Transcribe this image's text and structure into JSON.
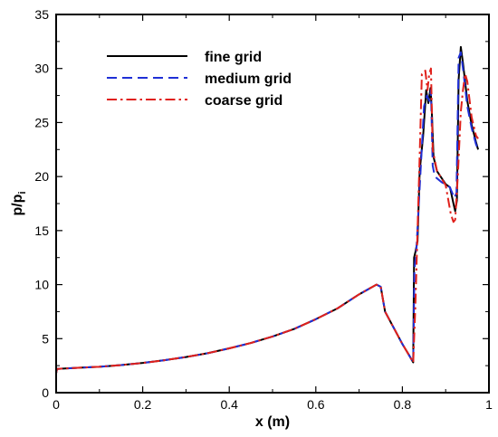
{
  "chart_data": {
    "type": "line",
    "title": "",
    "xlabel": "x (m)",
    "ylabel": "p/p",
    "ylabel_subscript": "i",
    "xlim": [
      0,
      1
    ],
    "ylim": [
      0,
      35
    ],
    "xticks": [
      "0",
      "0.2",
      "0.4",
      "0.6",
      "0.8",
      "1"
    ],
    "yticks": [
      "0",
      "5",
      "10",
      "15",
      "20",
      "25",
      "30",
      "35"
    ],
    "grid": false,
    "legend_position": "top-left",
    "series": [
      {
        "name": "fine grid",
        "color": "#000000",
        "dash": "solid",
        "x": [
          0,
          0.002,
          0.05,
          0.1,
          0.15,
          0.2,
          0.25,
          0.3,
          0.35,
          0.4,
          0.45,
          0.5,
          0.55,
          0.6,
          0.65,
          0.7,
          0.74,
          0.745,
          0.75,
          0.76,
          0.78,
          0.8,
          0.815,
          0.825,
          0.827,
          0.83,
          0.835,
          0.84,
          0.848,
          0.855,
          0.86,
          0.865,
          0.868,
          0.872,
          0.88,
          0.9,
          0.91,
          0.918,
          0.922,
          0.926,
          0.93,
          0.935,
          0.94,
          0.95,
          0.96,
          0.97,
          0.975
        ],
        "y": [
          1.8,
          2.2,
          2.3,
          2.4,
          2.55,
          2.75,
          3.0,
          3.3,
          3.65,
          4.1,
          4.6,
          5.2,
          5.9,
          6.8,
          7.8,
          9.1,
          10.0,
          9.9,
          9.8,
          7.5,
          6.0,
          4.5,
          3.5,
          2.8,
          12.5,
          13.0,
          14.0,
          20.5,
          23.8,
          28.0,
          26.8,
          28.2,
          26.0,
          21.8,
          20.5,
          19.3,
          19.0,
          17.5,
          16.8,
          17.8,
          29.0,
          32.0,
          30.5,
          27.0,
          24.8,
          23.2,
          22.5
        ]
      },
      {
        "name": "medium grid",
        "color": "#1f2fd6",
        "dash": "dashed",
        "x": [
          0,
          0.002,
          0.05,
          0.1,
          0.15,
          0.2,
          0.25,
          0.3,
          0.35,
          0.4,
          0.45,
          0.5,
          0.55,
          0.6,
          0.65,
          0.7,
          0.74,
          0.745,
          0.75,
          0.76,
          0.78,
          0.8,
          0.815,
          0.825,
          0.828,
          0.832,
          0.84,
          0.85,
          0.857,
          0.862,
          0.866,
          0.87,
          0.875,
          0.89,
          0.91,
          0.92,
          0.925,
          0.93,
          0.935,
          0.94,
          0.95,
          0.96,
          0.97,
          0.975
        ],
        "y": [
          1.8,
          2.2,
          2.3,
          2.4,
          2.55,
          2.75,
          3.0,
          3.3,
          3.65,
          4.1,
          4.6,
          5.2,
          5.9,
          6.8,
          7.8,
          9.1,
          10.0,
          9.9,
          9.8,
          7.5,
          6.0,
          4.5,
          3.5,
          2.8,
          11.5,
          13.0,
          19.0,
          26.5,
          27.5,
          27.0,
          28.0,
          21.0,
          20.0,
          19.5,
          19.0,
          18.0,
          18.5,
          31.0,
          31.5,
          30.0,
          26.5,
          24.5,
          23.0,
          22.5
        ]
      },
      {
        "name": "coarse grid",
        "color": "#e0201b",
        "dash": "dashdot",
        "x": [
          0,
          0.002,
          0.05,
          0.1,
          0.15,
          0.2,
          0.25,
          0.3,
          0.35,
          0.4,
          0.45,
          0.5,
          0.55,
          0.6,
          0.65,
          0.7,
          0.74,
          0.745,
          0.75,
          0.76,
          0.78,
          0.8,
          0.815,
          0.825,
          0.83,
          0.835,
          0.84,
          0.845,
          0.853,
          0.858,
          0.862,
          0.866,
          0.87,
          0.88,
          0.9,
          0.912,
          0.918,
          0.922,
          0.928,
          0.935,
          0.94,
          0.945,
          0.95,
          0.96,
          0.97,
          0.975
        ],
        "y": [
          1.8,
          2.2,
          2.3,
          2.4,
          2.55,
          2.75,
          3.0,
          3.3,
          3.65,
          4.1,
          4.6,
          5.2,
          5.9,
          6.8,
          7.8,
          9.1,
          10.0,
          9.9,
          9.8,
          7.5,
          6.0,
          4.5,
          3.5,
          2.8,
          8.0,
          15.0,
          22.0,
          29.5,
          29.8,
          28.0,
          29.5,
          30.0,
          22.5,
          20.5,
          19.2,
          16.5,
          15.8,
          16.0,
          20.0,
          26.0,
          28.0,
          29.5,
          28.8,
          25.5,
          23.8,
          23.5
        ]
      }
    ]
  }
}
